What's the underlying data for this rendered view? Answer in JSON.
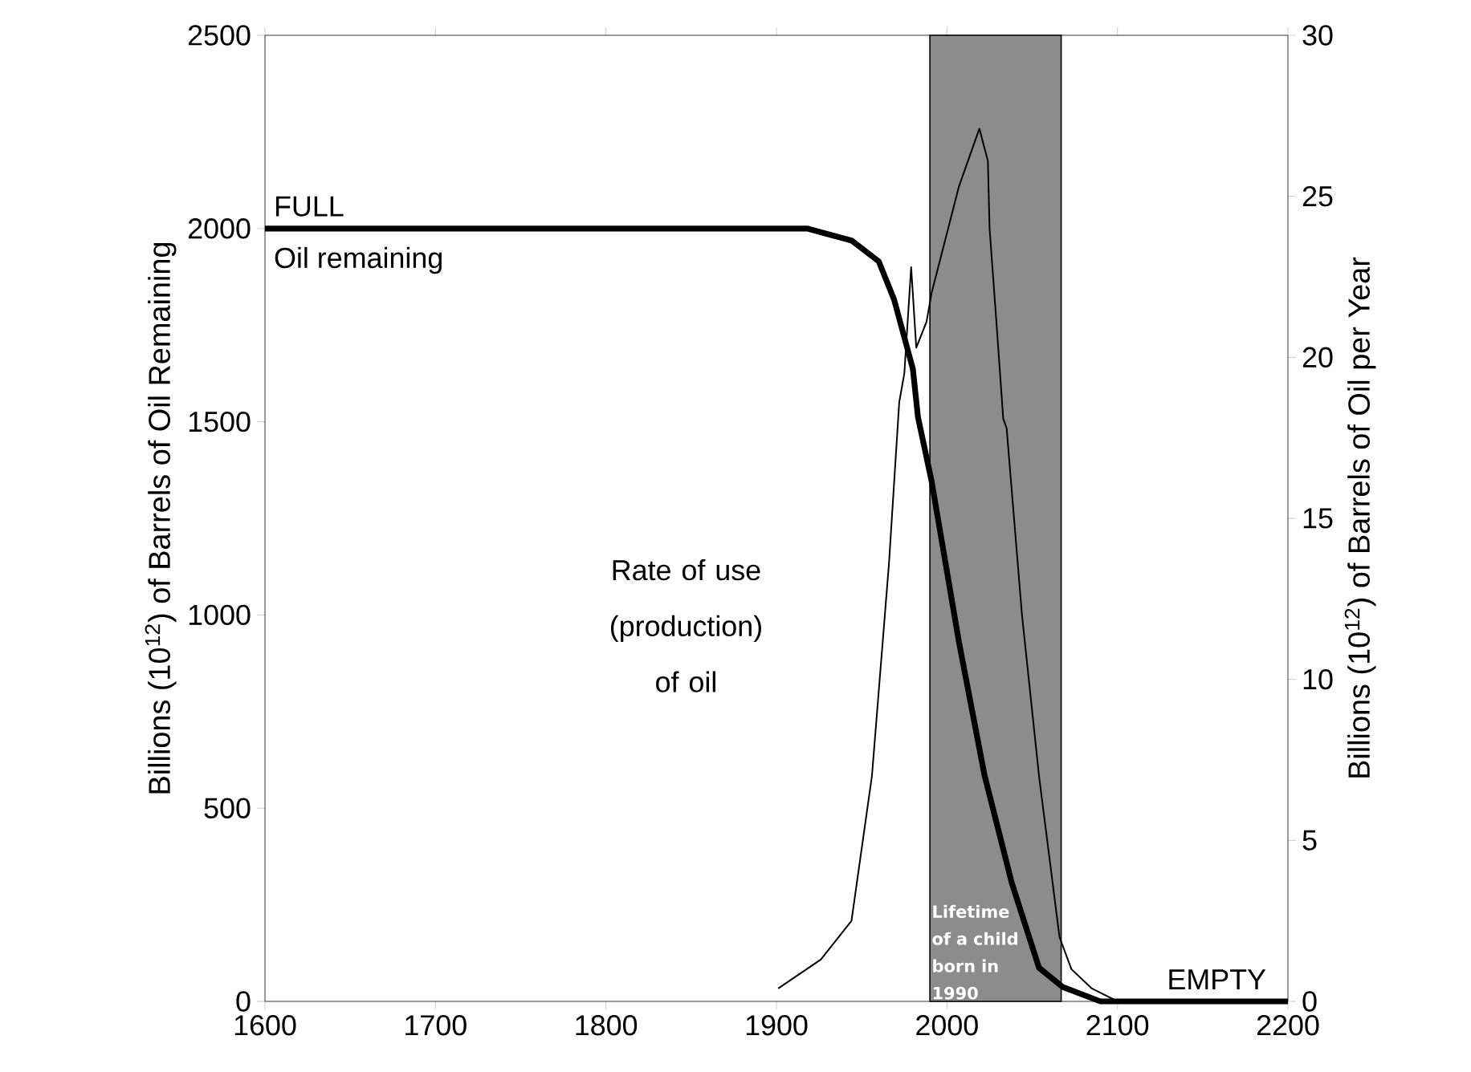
{
  "chart_data": {
    "type": "line",
    "xlabel": null,
    "ylabel": "Billions (10$^{12}$) of Barrels of Oil Remaining",
    "y2label": "Billions (10$^{12}$) of Barrels of Oil per Year",
    "series": [
      {
        "name": "Oil remaining",
        "color": "#000000",
        "x": [
          1600,
          1918,
          1944,
          1960,
          1969,
          1980,
          1983,
          1991,
          2007,
          2022,
          2038,
          2054,
          2068,
          2090,
          2200
        ],
        "values": [
          2000,
          2000,
          1969,
          1915,
          1816,
          1637,
          1512,
          1346,
          931,
          586,
          307,
          87,
          37,
          0,
          0
        ]
      },
      {
        "name": "Rate of use (production) of oil",
        "color": "#000000",
        "axis": "y2",
        "x": [
          1901,
          1926,
          1944,
          1956,
          1966,
          1972,
          1975,
          1979,
          1982,
          1988,
          1991,
          2007,
          2019,
          2024,
          2025,
          2029,
          2033,
          2035,
          2044,
          2054,
          2066,
          2073,
          2085,
          2100,
          2200
        ],
        "values": [
          0.4,
          1.3,
          2.5,
          7.0,
          13.6,
          18.6,
          19.5,
          22.8,
          20.3,
          21.1,
          22.0,
          25.3,
          27.1,
          26.1,
          24.0,
          21.1,
          18.1,
          17.8,
          12.0,
          7.0,
          2.0,
          1.0,
          0.4,
          0,
          0
        ]
      }
    ],
    "xlim": [
      1600,
      2200
    ],
    "xticks": [
      1600,
      1700,
      1800,
      1900,
      2000,
      2100,
      2200
    ],
    "ylim": [
      0,
      2500
    ],
    "yticks": [
      0,
      500,
      1000,
      1500,
      2000,
      2500
    ],
    "y2lim": [
      0,
      30
    ],
    "y2ticks": [
      0,
      5,
      10,
      15,
      20,
      25,
      30
    ],
    "bands": [
      {
        "axis": "x",
        "from": 1990,
        "to": 2067,
        "label": "Lifetime of a child born in 1990",
        "color": "#8c8c8c"
      }
    ],
    "annotations": [
      {
        "text": "FULL",
        "x": 1600,
        "y": 2000
      },
      {
        "text": "EMPTY",
        "x": 2200,
        "y": 0
      }
    ],
    "grid": false,
    "legend": false,
    "marker": "none",
    "line_style": "solid"
  }
}
